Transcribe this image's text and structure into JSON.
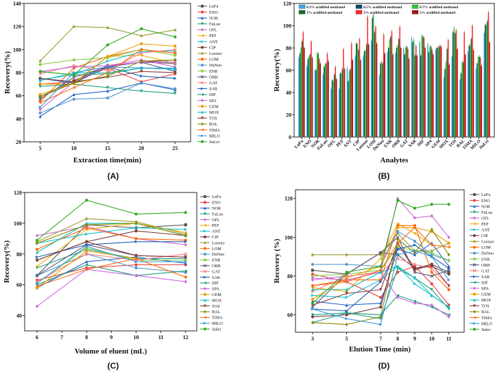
{
  "chart_data": [
    {
      "type": "line",
      "panel_label": "(A)",
      "title": "",
      "xlabel": "Extraction time(min)",
      "ylabel": "Recovery(%)",
      "x": [
        5,
        10,
        15,
        20,
        25
      ],
      "xticks": [
        5,
        10,
        15,
        20,
        25
      ],
      "yticks": [
        20,
        40,
        60,
        80,
        100,
        120,
        140
      ],
      "ylim": [
        20,
        140
      ],
      "legend_position": "right-outside",
      "series": [
        {
          "name": "LuFu",
          "color": "#555555",
          "values": [
            59,
            73,
            86,
            89,
            88
          ]
        },
        {
          "name": "ENO",
          "color": "#e8413b",
          "values": [
            70,
            72,
            84,
            72,
            79
          ]
        },
        {
          "name": "NOR",
          "color": "#1f5fc8",
          "values": [
            42,
            61,
            64,
            71,
            65
          ]
        },
        {
          "name": "FuLuo",
          "color": "#18a080",
          "values": [
            68,
            70,
            67,
            64,
            62
          ]
        },
        {
          "name": "OFL",
          "color": "#cc66cc",
          "values": [
            48,
            72,
            86,
            91,
            85
          ]
        },
        {
          "name": "PEF",
          "color": "#f0a800",
          "values": [
            70,
            70,
            94,
            95,
            88
          ]
        },
        {
          "name": "ANT",
          "color": "#12c0d0",
          "values": [
            74,
            78,
            90,
            98,
            99
          ]
        },
        {
          "name": "CIP",
          "color": "#7a3a3a",
          "values": [
            59,
            73,
            86,
            89,
            91
          ]
        },
        {
          "name": "Luosuo",
          "color": "#9a9a30",
          "values": [
            90,
            120,
            119,
            112,
            117
          ]
        },
        {
          "name": "LOM",
          "color": "#ff6600",
          "values": [
            55,
            84,
            94,
            100,
            97
          ]
        },
        {
          "name": "DuNuo",
          "color": "#5599cc",
          "values": [
            45,
            57,
            58,
            71,
            66
          ]
        },
        {
          "name": "ENR",
          "color": "#88cc44",
          "values": [
            87,
            91,
            93,
            100,
            95
          ]
        },
        {
          "name": "ORB",
          "color": "#555577",
          "values": [
            57,
            76,
            85,
            89,
            81
          ]
        },
        {
          "name": "GAT",
          "color": "#ff7f7f",
          "values": [
            79,
            86,
            82,
            97,
            100
          ]
        },
        {
          "name": "SAR",
          "color": "#1a5fb4",
          "values": [
            75,
            71,
            85,
            77,
            75
          ]
        },
        {
          "name": "DIF",
          "color": "#1a9a7a",
          "values": [
            81,
            78,
            79,
            84,
            83
          ]
        },
        {
          "name": "SPA",
          "color": "#cc66dd",
          "values": [
            81,
            85,
            86,
            89,
            89
          ]
        },
        {
          "name": "GEM",
          "color": "#e8a000",
          "values": [
            61,
            71,
            94,
            105,
            103
          ]
        },
        {
          "name": "MOX",
          "color": "#10c0c0",
          "values": [
            73,
            80,
            80,
            84,
            83
          ]
        },
        {
          "name": "TOS",
          "color": "#8a3a3a",
          "values": [
            75,
            72,
            76,
            81,
            80
          ]
        },
        {
          "name": "BAL",
          "color": "#888800",
          "values": [
            59,
            71,
            77,
            90,
            91
          ]
        },
        {
          "name": "TIMA",
          "color": "#ff6a1a",
          "values": [
            54,
            67,
            80,
            100,
            97
          ]
        },
        {
          "name": "MILO",
          "color": "#3399dd",
          "values": [
            50,
            80,
            85,
            84,
            84
          ]
        },
        {
          "name": "JiaLei",
          "color": "#33aa22",
          "values": [
            81,
            78,
            104,
            118,
            111
          ]
        }
      ]
    },
    {
      "type": "bar",
      "panel_label": "(B)",
      "title": "",
      "xlabel": "Analytes",
      "ylabel": "Recovery(%)",
      "categories": [
        "LuFu",
        "ENO",
        "NOR",
        "FuLuo",
        "OFL",
        "PEF",
        "ANT",
        "CIP",
        "Luosuo",
        "LOM",
        "DuNuo",
        "ENR",
        "ORB",
        "GAT",
        "SAR",
        "DIF",
        "SPA",
        "GEM",
        "MOX",
        "TOS",
        "BAL",
        "TIMA",
        "MILO",
        "JiaLei"
      ],
      "yticks": [
        0,
        20,
        40,
        60,
        80,
        100,
        120
      ],
      "ylim": [
        0,
        120
      ],
      "legend_position": "top-inside",
      "series": [
        {
          "name": "0.3% acidified methanol",
          "color": "#3fa9e0",
          "values": [
            71,
            63,
            60,
            56,
            43,
            43,
            62,
            72,
            72,
            86,
            55,
            76,
            75,
            79,
            89,
            85,
            83,
            78,
            53,
            72,
            51,
            76,
            61,
            93
          ]
        },
        {
          "name": "0.5% acidified methanol",
          "color": "#0c4a6e",
          "values": [
            75,
            70,
            60,
            63,
            51,
            57,
            50,
            84,
            77,
            107,
            66,
            80,
            80,
            74,
            85,
            73,
            76,
            80,
            61,
            94,
            57,
            82,
            66,
            101
          ]
        },
        {
          "name": "0.7% acidified methanol",
          "color": "#33cc33",
          "values": [
            80,
            72,
            75,
            65,
            50,
            57,
            59,
            83,
            77,
            110,
            67,
            87,
            82,
            80,
            87,
            91,
            81,
            80,
            67,
            98,
            67,
            82,
            72,
            100
          ]
        },
        {
          "name": "1% acidified methanol",
          "color": "#1a6e2a",
          "values": [
            86,
            74,
            75,
            66,
            56,
            61,
            61,
            78,
            83,
            94,
            66,
            90,
            88,
            81,
            73,
            90,
            81,
            81,
            79,
            93,
            67,
            88,
            72,
            104
          ]
        },
        {
          "name": "3% acidified methanol",
          "color": "#ff2a2a",
          "values": [
            94,
            86,
            70,
            75,
            63,
            79,
            84,
            88,
            108,
            99,
            92,
            95,
            99,
            79,
            82,
            89,
            78,
            82,
            87,
            96,
            94,
            100,
            71,
            112
          ]
        },
        {
          "name": "5% acidified methanol",
          "color": "#a01818",
          "values": [
            80,
            71,
            66,
            68,
            52,
            61,
            69,
            69,
            83,
            84,
            75,
            74,
            80,
            70,
            73,
            80,
            74,
            81,
            65,
            79,
            74,
            78,
            64,
            85
          ]
        }
      ]
    },
    {
      "type": "line",
      "panel_label": "(C)",
      "title": "",
      "xlabel": "Volume of eluent (mL)",
      "ylabel": "Recovery(%)",
      "x": [
        6,
        8,
        10,
        12
      ],
      "xticks": [
        6,
        7,
        8,
        9,
        10,
        11,
        12
      ],
      "yticks": [
        40,
        60,
        80,
        100,
        120
      ],
      "ylim": [
        30,
        120
      ],
      "legend_position": "right-outside",
      "series": [
        {
          "name": "LuFu",
          "color": "#555555",
          "values": [
            66,
            99,
            97,
            99
          ]
        },
        {
          "name": "ENO",
          "color": "#e8413b",
          "values": [
            63,
            71,
            73,
            73
          ]
        },
        {
          "name": "NOR",
          "color": "#1f5fc8",
          "values": [
            58,
            75,
            78,
            74
          ]
        },
        {
          "name": "FuLuo",
          "color": "#18a080",
          "values": [
            71,
            83,
            77,
            77
          ]
        },
        {
          "name": "OFL",
          "color": "#cc66cc",
          "values": [
            92,
            98,
            90,
            86
          ]
        },
        {
          "name": "PEF",
          "color": "#f0a800",
          "values": [
            72,
            96,
            100,
            94
          ]
        },
        {
          "name": "ANT",
          "color": "#12c0d0",
          "values": [
            87,
            93,
            97,
            96
          ]
        },
        {
          "name": "CIP",
          "color": "#7a3a3a",
          "values": [
            76,
            88,
            95,
            92
          ]
        },
        {
          "name": "Luosuo",
          "color": "#9a9a30",
          "values": [
            88,
            103,
            101,
            93
          ]
        },
        {
          "name": "LOM",
          "color": "#ff6600",
          "values": [
            83,
            97,
            90,
            89
          ]
        },
        {
          "name": "DuNuo",
          "color": "#5599cc",
          "values": [
            66,
            80,
            71,
            68
          ]
        },
        {
          "name": "ENR",
          "color": "#88cc44",
          "values": [
            61,
            84,
            76,
            76
          ]
        },
        {
          "name": "ORB",
          "color": "#555577",
          "values": [
            66,
            86,
            79,
            78
          ]
        },
        {
          "name": "GAT",
          "color": "#ff7f7f",
          "values": [
            62,
            80,
            76,
            80
          ]
        },
        {
          "name": "SAR",
          "color": "#1a5fb4",
          "values": [
            78,
            86,
            88,
            88
          ]
        },
        {
          "name": "DIF",
          "color": "#1a9a7a",
          "values": [
            60,
            73,
            66,
            69
          ]
        },
        {
          "name": "SPA",
          "color": "#cc66dd",
          "values": [
            46,
            70,
            66,
            62
          ]
        },
        {
          "name": "GEM",
          "color": "#e8a000",
          "values": [
            58,
            82,
            77,
            65
          ]
        },
        {
          "name": "MOX",
          "color": "#10c0c0",
          "values": [
            81,
            100,
            100,
            92
          ]
        },
        {
          "name": "TOS",
          "color": "#8a3a3a",
          "values": [
            76,
            88,
            79,
            78
          ]
        },
        {
          "name": "BAL",
          "color": "#888800",
          "values": [
            87,
            99,
            100,
            92
          ]
        },
        {
          "name": "TIMA",
          "color": "#ff6a1a",
          "values": [
            59,
            70,
            77,
            65
          ]
        },
        {
          "name": "MILO",
          "color": "#3399dd",
          "values": [
            61,
            85,
            75,
            75
          ]
        },
        {
          "name": "Jialei",
          "color": "#33aa22",
          "values": [
            89,
            115,
            106,
            107
          ]
        }
      ]
    },
    {
      "type": "line",
      "panel_label": "(D)",
      "title": "",
      "xlabel": "Elution  Time (min)",
      "ylabel": "Recovery (%)",
      "x": [
        3,
        5,
        7,
        8,
        9,
        10,
        11
      ],
      "xticks": [
        3,
        5,
        7,
        8,
        9,
        10,
        11
      ],
      "yticks": [
        60,
        80,
        100,
        120
      ],
      "ylim": [
        51,
        124.5
      ],
      "legend_position": "right-outside",
      "series": [
        {
          "name": "LuFu",
          "color": "#555555",
          "values": [
            83,
            81,
            92,
            91,
            84,
            86,
            82
          ]
        },
        {
          "name": "ENO",
          "color": "#e8413b",
          "values": [
            81,
            77,
            69,
            82,
            85,
            76,
            65
          ]
        },
        {
          "name": "NOR",
          "color": "#1f5fc8",
          "values": [
            67,
            65,
            66,
            94,
            91,
            97,
            85
          ]
        },
        {
          "name": "FuLuo",
          "color": "#18a080",
          "values": [
            60,
            61,
            58,
            84,
            79,
            73,
            63
          ]
        },
        {
          "name": "OFL",
          "color": "#cc66cc",
          "values": [
            78,
            80,
            82,
            120,
            110,
            111,
            100
          ]
        },
        {
          "name": "PEF",
          "color": "#f0a800",
          "values": [
            74,
            72,
            89,
            107,
            102,
            96,
            95
          ]
        },
        {
          "name": "ANT",
          "color": "#12c0d0",
          "values": [
            70,
            69,
            78,
            85,
            76,
            70,
            64
          ]
        },
        {
          "name": "CIP",
          "color": "#7a3a3a",
          "values": [
            59,
            60,
            64,
            97,
            84,
            85,
            81
          ]
        },
        {
          "name": "Luosuo",
          "color": "#9a9a30",
          "values": [
            91,
            91,
            91,
            102,
            93,
            93,
            97
          ]
        },
        {
          "name": "LOM",
          "color": "#ff6600",
          "values": [
            75,
            78,
            78,
            106,
            106,
            82,
            73
          ]
        },
        {
          "name": "DuNuo",
          "color": "#5599cc",
          "values": [
            86,
            86,
            85,
            103,
            98,
            91,
            88
          ]
        },
        {
          "name": "ENR",
          "color": "#88cc44",
          "values": [
            80,
            81,
            83,
            95,
            93,
            92,
            88
          ]
        },
        {
          "name": "ORB",
          "color": "#555577",
          "values": [
            64,
            81,
            92,
            100,
            82,
            80,
            83
          ]
        },
        {
          "name": "GAT",
          "color": "#ff7f7f",
          "values": [
            72,
            80,
            82,
            89,
            86,
            84,
            75
          ]
        },
        {
          "name": "SAR",
          "color": "#1a5fb4",
          "values": [
            63,
            62,
            77,
            94,
            96,
            90,
            84
          ]
        },
        {
          "name": "DIF",
          "color": "#1a9a7a",
          "values": [
            56,
            61,
            60,
            70,
            67,
            64,
            60
          ]
        },
        {
          "name": "SPA",
          "color": "#cc66dd",
          "values": [
            79,
            78,
            82,
            69,
            66,
            65,
            59
          ]
        },
        {
          "name": "GEM",
          "color": "#e8a000",
          "values": [
            68,
            79,
            85,
            105,
            105,
            103,
            97
          ]
        },
        {
          "name": "MOX",
          "color": "#10c0c0",
          "values": [
            73,
            73,
            82,
            85,
            79,
            70,
            64
          ]
        },
        {
          "name": "TOS",
          "color": "#8a3a3a",
          "values": [
            65,
            71,
            73,
            97,
            83,
            86,
            75
          ]
        },
        {
          "name": "BAL",
          "color": "#888800",
          "values": [
            56,
            55,
            59,
            99,
            92,
            104,
            91
          ]
        },
        {
          "name": "TIMA",
          "color": "#ff6a1a",
          "values": [
            75,
            77,
            83,
            97,
            105,
            96,
            95
          ]
        },
        {
          "name": "MILO",
          "color": "#3399dd",
          "values": [
            63,
            58,
            55,
            91,
            93,
            90,
            78
          ]
        },
        {
          "name": "Jialei",
          "color": "#33aa22",
          "values": [
            66,
            82,
            85,
            119,
            115,
            117,
            117
          ]
        }
      ]
    }
  ]
}
